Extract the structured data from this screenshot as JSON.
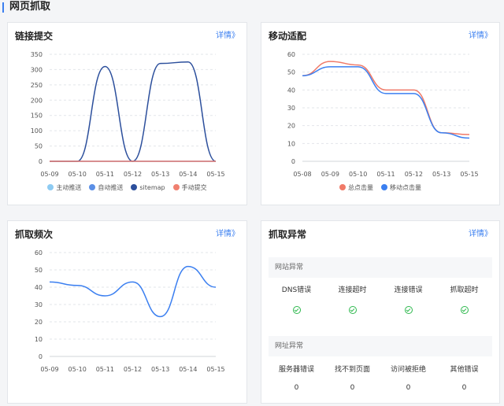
{
  "page_title": "网页抓取",
  "detail_link": "详情》",
  "cards": {
    "link_submit": {
      "title": "链接提交",
      "legend": [
        {
          "label": "主动推送",
          "color": "#8ecbf2"
        },
        {
          "label": "自动推送",
          "color": "#5b8fe6"
        },
        {
          "label": "sitemap",
          "color": "#2c4f9c"
        },
        {
          "label": "手动提交",
          "color": "#f08070"
        }
      ]
    },
    "mobile_adapt": {
      "title": "移动适配",
      "legend": [
        {
          "label": "总点击量",
          "color": "#f07a68"
        },
        {
          "label": "移动点击量",
          "color": "#3b7ff0"
        }
      ]
    },
    "crawl_freq": {
      "title": "抓取频次"
    },
    "crawl_error": {
      "title": "抓取异常",
      "site_section": "网站异常",
      "site_items": [
        {
          "label": "DNS错误"
        },
        {
          "label": "连接超时"
        },
        {
          "label": "连接错误"
        },
        {
          "label": "抓取超时"
        }
      ],
      "url_section": "网址异常",
      "url_items": [
        {
          "label": "服务器错误",
          "value": "0"
        },
        {
          "label": "找不到页面",
          "value": "0"
        },
        {
          "label": "访问被拒绝",
          "value": "0"
        },
        {
          "label": "其他错误",
          "value": "0"
        }
      ]
    }
  },
  "chart_data": [
    {
      "type": "line",
      "categories": [
        "05-09",
        "05-10",
        "05-11",
        "05-12",
        "05-13",
        "05-14",
        "05-15"
      ],
      "ylim": [
        0,
        350
      ],
      "yticks": [
        0,
        50,
        100,
        150,
        200,
        250,
        300,
        350
      ],
      "grid": true,
      "legend": "bottom",
      "series": [
        {
          "name": "主动推送",
          "values": [
            0,
            0,
            0,
            0,
            0,
            0,
            0
          ],
          "color": "#8ecbf2"
        },
        {
          "name": "自动推送",
          "values": [
            0,
            0,
            0,
            0,
            0,
            0,
            0
          ],
          "color": "#5b8fe6"
        },
        {
          "name": "sitemap",
          "values": [
            0,
            0,
            310,
            0,
            320,
            325,
            0
          ],
          "color": "#2c4f9c"
        },
        {
          "name": "手动提交",
          "values": [
            0,
            0,
            0,
            0,
            0,
            0,
            0
          ],
          "color": "#f08070"
        }
      ]
    },
    {
      "type": "line",
      "categories": [
        "05-08",
        "05-09",
        "05-10",
        "05-11",
        "05-12",
        "05-13",
        "05-15"
      ],
      "ylim": [
        0,
        60
      ],
      "yticks": [
        0,
        10,
        20,
        30,
        40,
        50,
        60
      ],
      "grid": true,
      "legend": "bottom",
      "series": [
        {
          "name": "总点击量",
          "values": [
            48,
            56,
            54,
            40,
            40,
            16,
            15
          ],
          "color": "#f07a68"
        },
        {
          "name": "移动点击量",
          "values": [
            48,
            53,
            53,
            38,
            38,
            16,
            13
          ],
          "color": "#3b7ff0"
        }
      ]
    },
    {
      "type": "line",
      "categories": [
        "05-09",
        "05-10",
        "05-11",
        "05-12",
        "05-13",
        "05-14",
        "05-15"
      ],
      "ylim": [
        0,
        60
      ],
      "yticks": [
        0,
        10,
        20,
        30,
        40,
        50,
        60
      ],
      "grid": true,
      "series": [
        {
          "values": [
            43,
            41,
            35,
            43,
            23,
            52,
            40
          ],
          "color": "#3b7ff0"
        }
      ]
    }
  ]
}
